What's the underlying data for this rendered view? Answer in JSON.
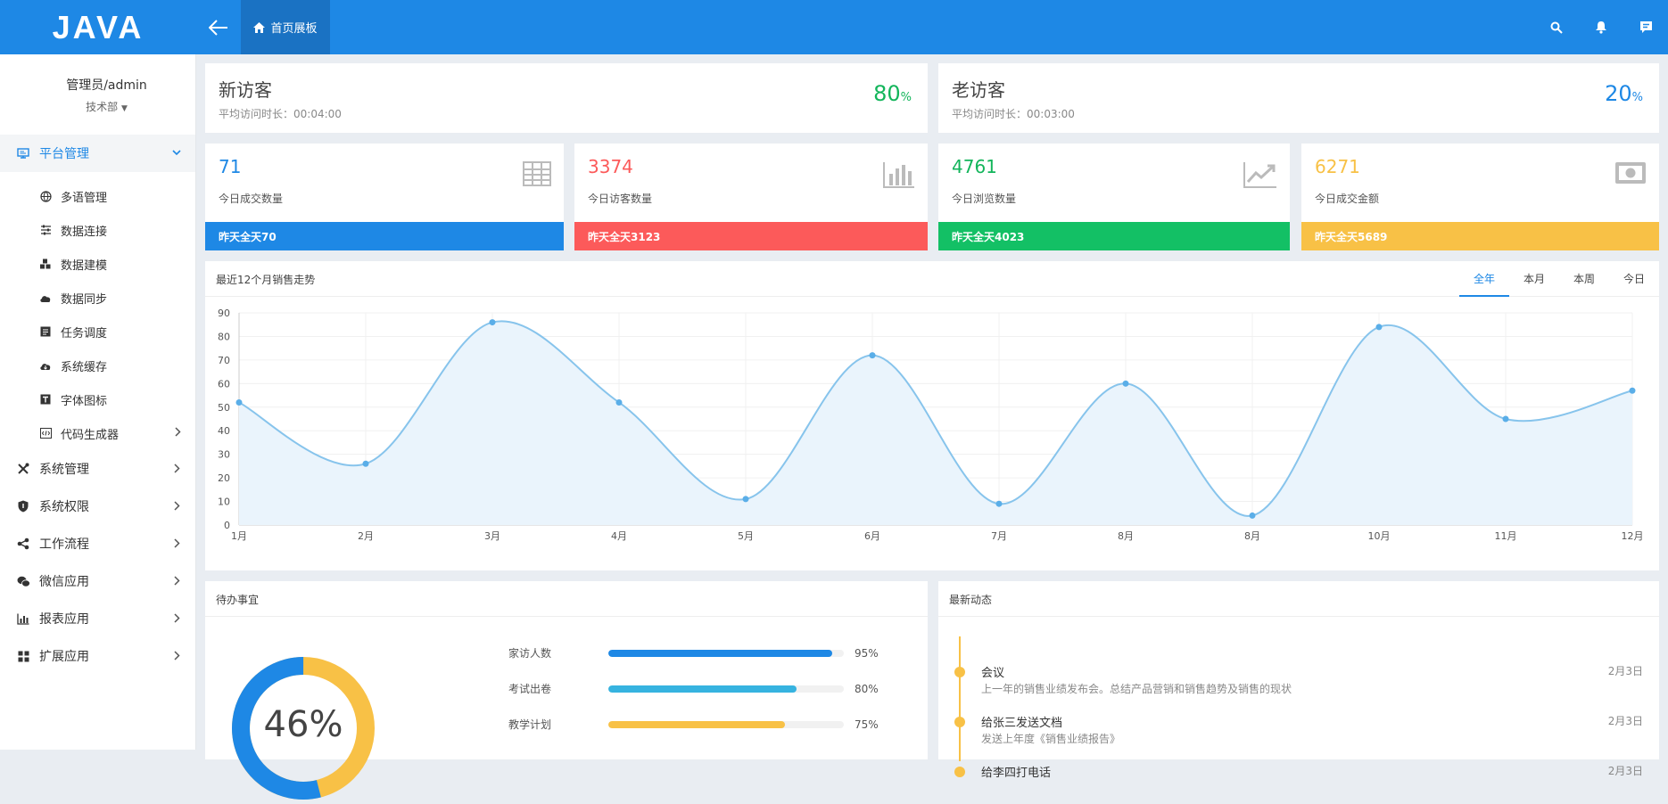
{
  "header": {
    "logo": "JAVA",
    "tab_home": "首页展板"
  },
  "sidebar": {
    "user_name": "管理员/admin",
    "department": "技术部",
    "platform_label": "平台管理",
    "sub_items": [
      {
        "label": "多语管理",
        "icon": "globe-icon"
      },
      {
        "label": "数据连接",
        "icon": "sliders-icon"
      },
      {
        "label": "数据建模",
        "icon": "cubes-icon"
      },
      {
        "label": "数据同步",
        "icon": "cloud-sync-icon"
      },
      {
        "label": "任务调度",
        "icon": "task-icon"
      },
      {
        "label": "系统缓存",
        "icon": "cloud-cache-icon"
      },
      {
        "label": "字体图标",
        "icon": "font-icon"
      },
      {
        "label": "代码生成器",
        "icon": "code-icon"
      }
    ],
    "menus": [
      {
        "label": "系统管理",
        "icon": "tools-icon"
      },
      {
        "label": "系统权限",
        "icon": "shield-icon"
      },
      {
        "label": "工作流程",
        "icon": "share-icon"
      },
      {
        "label": "微信应用",
        "icon": "wechat-icon"
      },
      {
        "label": "报表应用",
        "icon": "bar-chart-icon"
      },
      {
        "label": "扩展应用",
        "icon": "grid-icon"
      }
    ]
  },
  "visitors": {
    "new": {
      "title": "新访客",
      "sub": "平均访问时长：00:04:00",
      "pct": "80",
      "unit": "%",
      "color": "#13b55b"
    },
    "old": {
      "title": "老访客",
      "sub": "平均访问时长：00:03:00",
      "pct": "20",
      "unit": "%",
      "color": "#1e88e5"
    }
  },
  "stats": [
    {
      "num": "71",
      "label": "今日成交数量",
      "bar": "昨天全天70",
      "color": "#1e88e5",
      "icon": "table-icon"
    },
    {
      "num": "3374",
      "label": "今日访客数量",
      "bar": "昨天全天3123",
      "color": "#fc5a5a",
      "icon": "bar-chart-icon"
    },
    {
      "num": "4761",
      "label": "今日浏览数量",
      "bar": "昨天全天4023",
      "color": "#13c065",
      "icon": "trend-icon"
    },
    {
      "num": "6271",
      "label": "今日成交金额",
      "bar": "昨天全天5689",
      "color": "#f8c146",
      "icon": "money-icon"
    }
  ],
  "chart_panel": {
    "title": "最近12个月销售走势",
    "tabs": [
      "全年",
      "本月",
      "本周",
      "今日"
    ]
  },
  "chart_data": {
    "type": "line",
    "categories": [
      "1月",
      "2月",
      "3月",
      "4月",
      "5月",
      "6月",
      "7月",
      "8月",
      "8月",
      "10月",
      "11月",
      "12月"
    ],
    "values": [
      52,
      26,
      86,
      52,
      11,
      72,
      9,
      60,
      4,
      84,
      45,
      57
    ],
    "ylim": [
      0,
      90
    ],
    "yticks": [
      0,
      10,
      20,
      30,
      40,
      50,
      60,
      70,
      80,
      90
    ],
    "grid": true,
    "line_color": "#87c4ec",
    "fill_color": "#eaf4fc"
  },
  "todo": {
    "title": "待办事宜",
    "percent": "46%",
    "donut_fraction": 0.46,
    "items": [
      {
        "label": "家访人数",
        "value": "95%",
        "fraction": 0.95,
        "color": "#1e88e5"
      },
      {
        "label": "考试出卷",
        "value": "80%",
        "fraction": 0.8,
        "color": "#36b3e0"
      },
      {
        "label": "教学计划",
        "value": "75%",
        "fraction": 0.75,
        "color": "#f8c146"
      }
    ]
  },
  "news": {
    "title": "最新动态",
    "items": [
      {
        "title": "会议",
        "desc": "上一年的销售业绩发布会。总结产品营销和销售趋势及销售的现状",
        "date": "2月3日"
      },
      {
        "title": "给张三发送文档",
        "desc": "发送上年度《销售业绩报告》",
        "date": "2月3日"
      },
      {
        "title": "给李四打电话",
        "desc": "",
        "date": "2月3日"
      }
    ]
  }
}
